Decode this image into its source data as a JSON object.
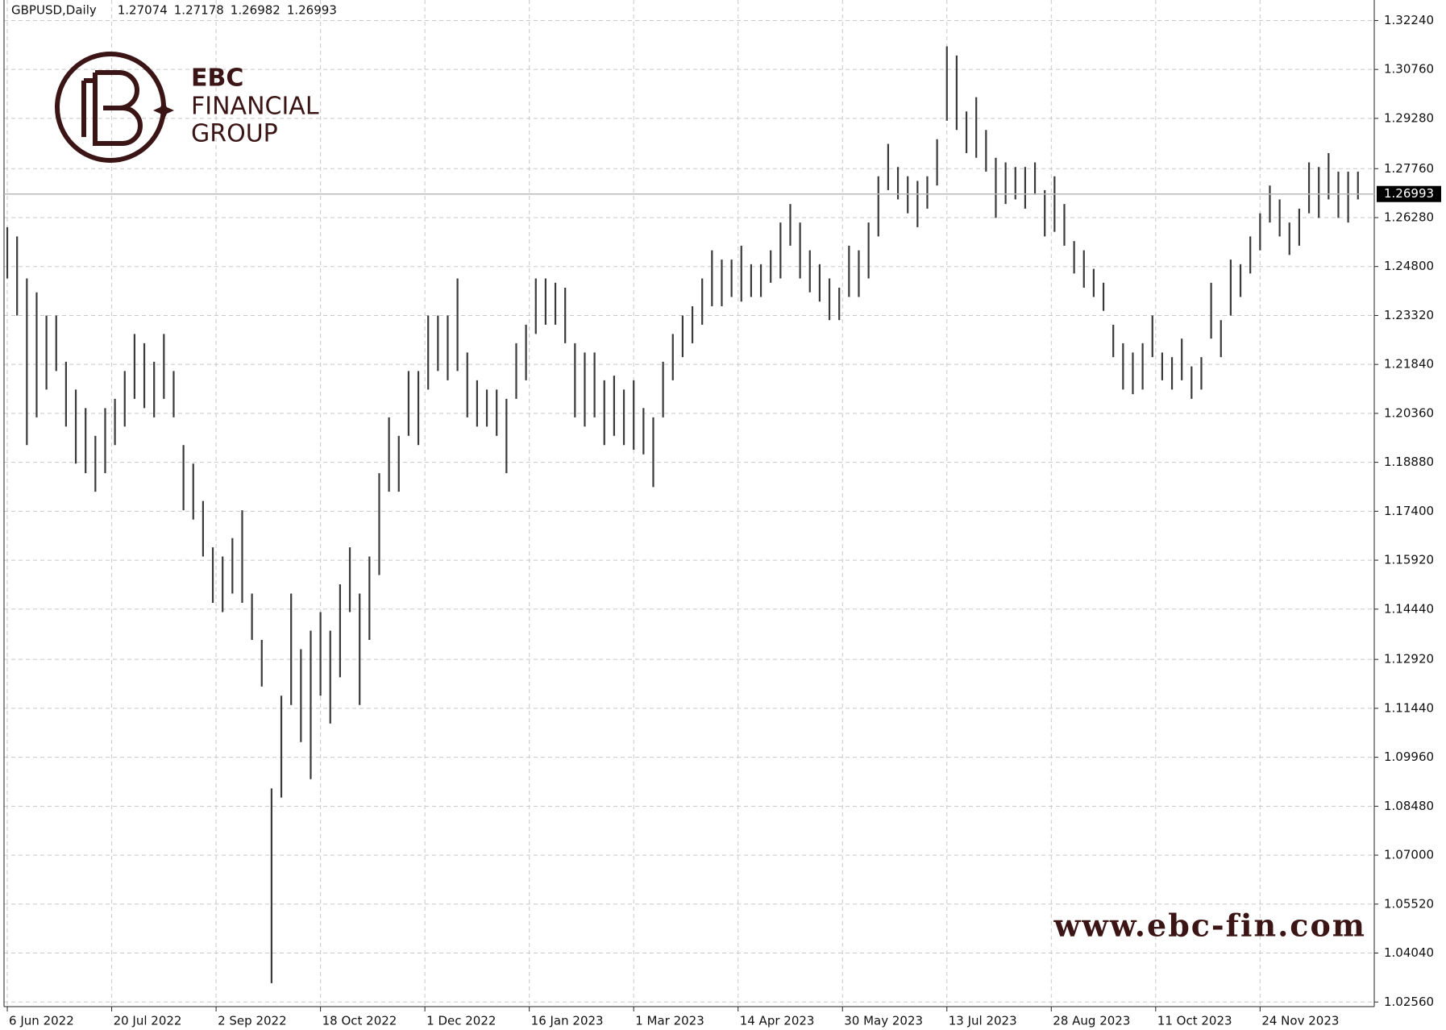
{
  "chart_data": {
    "type": "ohlc",
    "symbol": "GBPUSD,Daily",
    "header_prices": [
      1.27074,
      1.27178,
      1.26982,
      1.26993
    ],
    "last_price": 1.26993,
    "color": "#3a3a3a",
    "grid": true,
    "xlim": [
      -1,
      419
    ],
    "xticks": [
      {
        "value": 0,
        "label": "6 Jun 2022"
      },
      {
        "value": 32,
        "label": "20 Jul 2022"
      },
      {
        "value": 64,
        "label": "2 Sep 2022"
      },
      {
        "value": 96,
        "label": "18 Oct 2022"
      },
      {
        "value": 128,
        "label": "1 Dec 2022"
      },
      {
        "value": 160,
        "label": "16 Jan 2023"
      },
      {
        "value": 192,
        "label": "1 Mar 2023"
      },
      {
        "value": 224,
        "label": "14 Apr 2023"
      },
      {
        "value": 256,
        "label": "30 May 2023"
      },
      {
        "value": 288,
        "label": "13 Jul 2023"
      },
      {
        "value": 320,
        "label": "28 Aug 2023"
      },
      {
        "value": 352,
        "label": "11 Oct 2023"
      },
      {
        "value": 384,
        "label": "24 Nov 2023"
      }
    ],
    "ylim": [
      1.0242,
      1.3286
    ],
    "yticks": [
      {
        "value": 1.3224,
        "label": "1.32240"
      },
      {
        "value": 1.3076,
        "label": "1.30760"
      },
      {
        "value": 1.2928,
        "label": "1.29280"
      },
      {
        "value": 1.2776,
        "label": "1.27760"
      },
      {
        "value": 1.2628,
        "label": "1.26280"
      },
      {
        "value": 1.248,
        "label": "1.24800"
      },
      {
        "value": 1.2332,
        "label": "1.23320"
      },
      {
        "value": 1.2184,
        "label": "1.21840"
      },
      {
        "value": 1.2036,
        "label": "1.20360"
      },
      {
        "value": 1.1888,
        "label": "1.18880"
      },
      {
        "value": 1.174,
        "label": "1.17400"
      },
      {
        "value": 1.1592,
        "label": "1.15920"
      },
      {
        "value": 1.1444,
        "label": "1.14440"
      },
      {
        "value": 1.1292,
        "label": "1.12920"
      },
      {
        "value": 1.1144,
        "label": "1.11440"
      },
      {
        "value": 1.0996,
        "label": "1.09960"
      },
      {
        "value": 1.0848,
        "label": "1.08480"
      },
      {
        "value": 1.07,
        "label": "1.07000"
      },
      {
        "value": 1.0552,
        "label": "1.05520"
      },
      {
        "value": 1.0404,
        "label": "1.04040"
      },
      {
        "value": 1.0256,
        "label": "1.02560"
      }
    ],
    "x": [
      0,
      3,
      6,
      9,
      12,
      15,
      18,
      21,
      24,
      27,
      30,
      33,
      36,
      39,
      42,
      45,
      48,
      51,
      54,
      57,
      60,
      63,
      66,
      69,
      72,
      75,
      78,
      81,
      84,
      87,
      90,
      93,
      96,
      99,
      102,
      105,
      108,
      111,
      114,
      117,
      120,
      123,
      126,
      129,
      132,
      135,
      138,
      141,
      144,
      147,
      150,
      153,
      156,
      159,
      162,
      165,
      168,
      171,
      174,
      177,
      180,
      183,
      186,
      189,
      192,
      195,
      198,
      201,
      204,
      207,
      210,
      213,
      216,
      219,
      222,
      225,
      228,
      231,
      234,
      237,
      240,
      243,
      246,
      249,
      252,
      255,
      258,
      261,
      264,
      267,
      270,
      273,
      276,
      279,
      282,
      285,
      288,
      291,
      294,
      297,
      300,
      303,
      306,
      309,
      312,
      315,
      318,
      321,
      324,
      327,
      330,
      333,
      336,
      339,
      342,
      345,
      348,
      351,
      354,
      357,
      360,
      363,
      366,
      369,
      372,
      375,
      378,
      381,
      384,
      387,
      390,
      393,
      396,
      399,
      402,
      405,
      408,
      411,
      414
    ],
    "high": [
      1.2599,
      1.2571,
      1.2444,
      1.2402,
      1.2332,
      1.2332,
      1.2192,
      1.2108,
      1.2052,
      1.1968,
      1.2052,
      1.208,
      1.2164,
      1.2276,
      1.2248,
      1.2192,
      1.2276,
      1.2164,
      1.194,
      1.1884,
      1.1771,
      1.1631,
      1.1603,
      1.1659,
      1.1743,
      1.1491,
      1.1351,
      1.0902,
      1.1182,
      1.1491,
      1.1323,
      1.1379,
      1.1435,
      1.1379,
      1.1519,
      1.1631,
      1.1491,
      1.1603,
      1.1855,
      1.2024,
      1.1968,
      1.2164,
      1.2164,
      1.2332,
      1.2332,
      1.2332,
      1.2444,
      1.222,
      1.2136,
      1.2108,
      1.2108,
      1.208,
      1.2248,
      1.2304,
      1.2444,
      1.2444,
      1.2431,
      1.2416,
      1.2248,
      1.222,
      1.222,
      1.2136,
      1.215,
      1.2108,
      1.2136,
      1.2052,
      1.2024,
      1.2192,
      1.2276,
      1.2332,
      1.236,
      1.2444,
      1.2529,
      1.2501,
      1.2501,
      1.2543,
      1.2487,
      1.2487,
      1.2529,
      1.2613,
      1.2669,
      1.2613,
      1.2529,
      1.2487,
      1.2444,
      1.2416,
      1.2543,
      1.2529,
      1.2613,
      1.2753,
      1.2851,
      1.2781,
      1.2753,
      1.2739,
      1.2753,
      1.2865,
      1.3146,
      1.3118,
      1.2949,
      1.2992,
      1.2893,
      1.2809,
      1.2795,
      1.2781,
      1.2781,
      1.2795,
      1.2711,
      1.2753,
      1.2669,
      1.2557,
      1.2529,
      1.2473,
      1.2431,
      1.2304,
      1.2248,
      1.222,
      1.2248,
      1.2332,
      1.222,
      1.2206,
      1.2262,
      1.2178,
      1.2206,
      1.2431,
      1.2318,
      1.2501,
      1.2487,
      1.2571,
      1.2641,
      1.2725,
      1.2683,
      1.2613,
      1.2655,
      1.2795,
      1.2781,
      1.2823,
      1.2767,
      1.2767,
      1.2767
    ],
    "low": [
      1.2444,
      1.2332,
      1.194,
      1.2024,
      1.2108,
      1.2164,
      1.1996,
      1.1884,
      1.1855,
      1.1799,
      1.1855,
      1.194,
      1.1996,
      1.208,
      1.2052,
      1.2024,
      1.208,
      1.2024,
      1.1743,
      1.1715,
      1.1603,
      1.1463,
      1.1435,
      1.1491,
      1.1463,
      1.1351,
      1.121,
      1.0313,
      1.0874,
      1.1154,
      1.1042,
      1.093,
      1.1182,
      1.1098,
      1.1238,
      1.1435,
      1.1154,
      1.1351,
      1.1547,
      1.1799,
      1.1799,
      1.1968,
      1.194,
      1.2108,
      1.2164,
      1.2136,
      1.2164,
      1.2024,
      1.1996,
      1.1996,
      1.1968,
      1.1855,
      1.208,
      1.2136,
      1.2276,
      1.2304,
      1.2304,
      1.2248,
      1.2024,
      1.1996,
      1.2024,
      1.194,
      1.1968,
      1.194,
      1.1926,
      1.1912,
      1.1813,
      1.2024,
      1.2136,
      1.2206,
      1.2248,
      1.2304,
      1.236,
      1.236,
      1.2388,
      1.2374,
      1.2388,
      1.2388,
      1.2431,
      1.2444,
      1.2543,
      1.2444,
      1.2402,
      1.2374,
      1.2318,
      1.2318,
      1.2388,
      1.2388,
      1.2444,
      1.2571,
      1.2711,
      1.2683,
      1.2641,
      1.2599,
      1.2655,
      1.2725,
      1.2921,
      1.2893,
      1.2823,
      1.2809,
      1.2767,
      1.2627,
      1.2669,
      1.2683,
      1.2655,
      1.2697,
      1.2571,
      1.2585,
      1.2543,
      1.2459,
      1.2416,
      1.2388,
      1.2346,
      1.2206,
      1.2108,
      1.2094,
      1.2108,
      1.2206,
      1.2136,
      1.2108,
      1.2136,
      1.208,
      1.2108,
      1.2262,
      1.2206,
      1.2332,
      1.2388,
      1.2459,
      1.2529,
      1.2613,
      1.2571,
      1.2515,
      1.2543,
      1.2641,
      1.2627,
      1.2683,
      1.2627,
      1.2613,
      1.2683
    ]
  },
  "watermark": {
    "brand": "EBC",
    "line2": "FINANCIAL",
    "line3": "GROUP",
    "url": "www.ebc-fin.com"
  }
}
